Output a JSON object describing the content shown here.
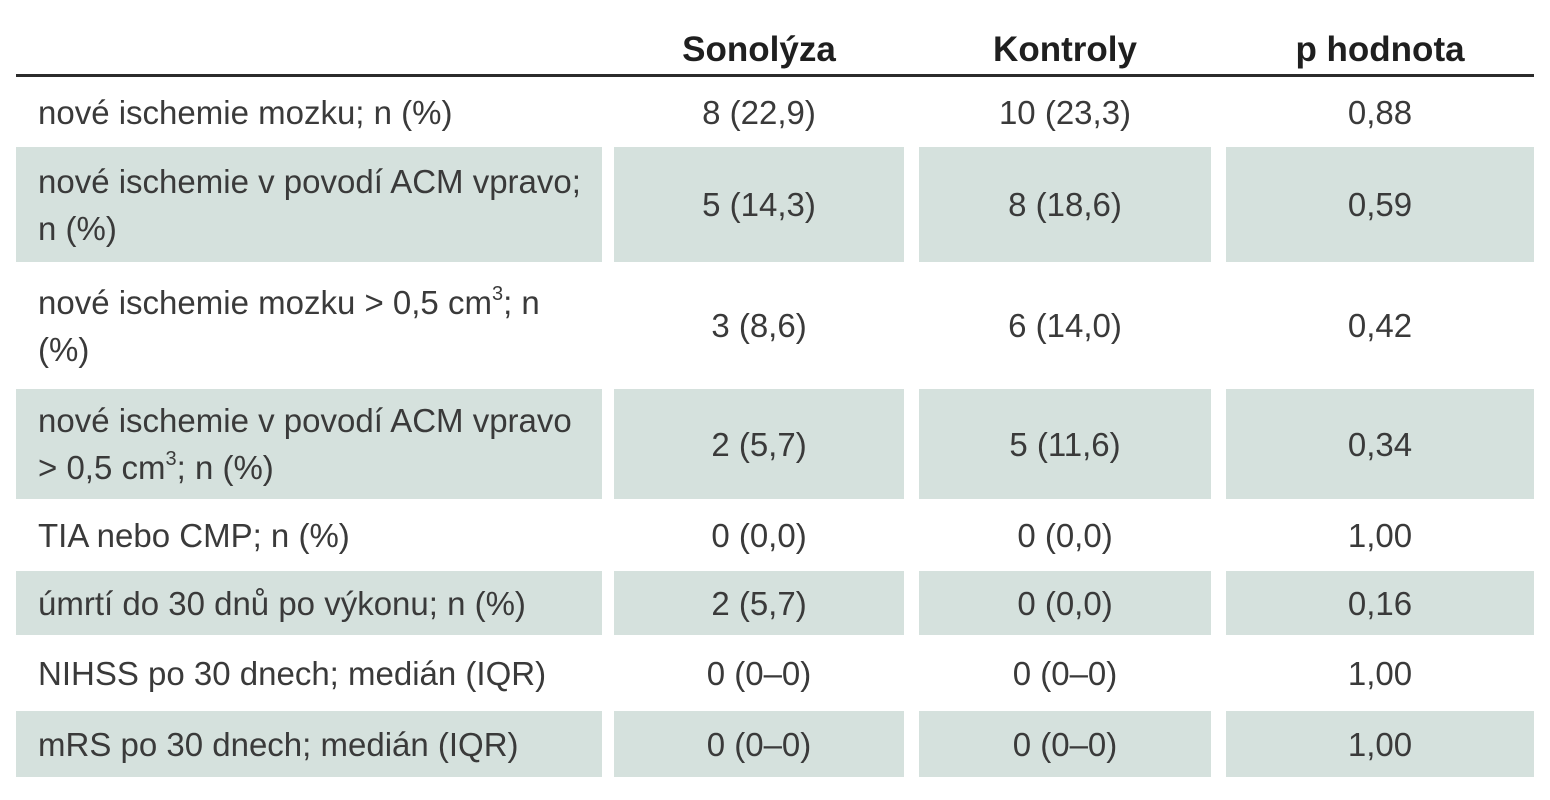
{
  "table": {
    "headers": [
      "",
      "Sonolýza",
      "Kontroly",
      "p hodnota"
    ],
    "rows": [
      {
        "label": "nové ischemie mozku; n (%)",
        "sonolyza": "8 (22,9)",
        "kontroly": "10 (23,3)",
        "p": "0,88"
      },
      {
        "label": "nové ischemie v povodí ACM vpravo; n (%)",
        "sonolyza": "5 (14,3)",
        "kontroly": "8 (18,6)",
        "p": "0,59"
      },
      {
        "label_pre": "nové ischemie mozku > 0,5 cm",
        "label_sup": "3",
        "label_post": "; n (%)",
        "sonolyza": "3 (8,6)",
        "kontroly": "6 (14,0)",
        "p": "0,42"
      },
      {
        "label_pre": "nové ischemie v povodí ACM vpravo > 0,5 cm",
        "label_sup": "3",
        "label_post": "; n (%)",
        "sonolyza": "2 (5,7)",
        "kontroly": "5 (11,6)",
        "p": "0,34"
      },
      {
        "label": "TIA nebo CMP; n (%)",
        "sonolyza": "0 (0,0)",
        "kontroly": "0 (0,0)",
        "p": "1,00"
      },
      {
        "label": "úmrtí do 30 dnů po výkonu; n (%)",
        "sonolyza": "2 (5,7)",
        "kontroly": "0 (0,0)",
        "p": "0,16"
      },
      {
        "label": "NIHSS po 30 dnech; medián (IQR)",
        "sonolyza": "0 (0–0)",
        "kontroly": "0 (0–0)",
        "p": "1,00"
      },
      {
        "label": "mRS po 30 dnech; medián (IQR)",
        "sonolyza": "0 (0–0)",
        "kontroly": "0 (0–0)",
        "p": "1,00"
      }
    ]
  }
}
